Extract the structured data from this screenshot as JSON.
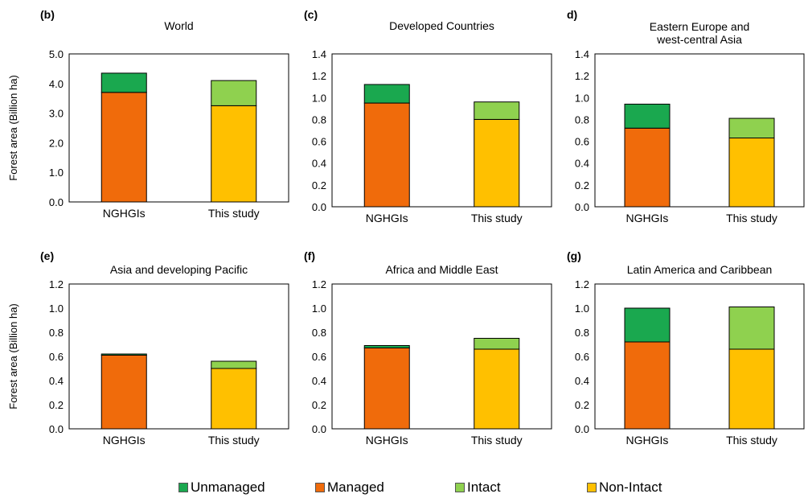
{
  "colors": {
    "unmanaged": "#1aa84f",
    "managed": "#f06b0b",
    "intact": "#8fd14f",
    "non_intact": "#ffc000"
  },
  "y_axis_label": "Forest area (Billion ha)",
  "legend": [
    {
      "label": "Unmanaged",
      "color_key": "unmanaged"
    },
    {
      "label": "Managed",
      "color_key": "managed"
    },
    {
      "label": "Intact",
      "color_key": "intact"
    },
    {
      "label": "Non-Intact",
      "color_key": "non_intact"
    }
  ],
  "chart_data": [
    {
      "type": "bar",
      "panel": "(b)",
      "title": "World",
      "categories": [
        "NGHGIs",
        "This study"
      ],
      "ylim": [
        0,
        5
      ],
      "yticks": [
        "0.0",
        "1.0",
        "2.0",
        "3.0",
        "4.0",
        "5.0"
      ],
      "series": [
        {
          "name": "Managed",
          "values": [
            3.7,
            null
          ]
        },
        {
          "name": "Unmanaged",
          "values": [
            0.65,
            null
          ]
        },
        {
          "name": "Non-Intact",
          "values": [
            null,
            3.25
          ]
        },
        {
          "name": "Intact",
          "values": [
            null,
            0.85
          ]
        }
      ]
    },
    {
      "type": "bar",
      "panel": "(c)",
      "title": "Developed Countries",
      "categories": [
        "NGHGIs",
        "This study"
      ],
      "ylim": [
        0,
        1.4
      ],
      "yticks": [
        "0.0",
        "0.2",
        "0.4",
        "0.6",
        "0.8",
        "1.0",
        "1.2",
        "1.4"
      ],
      "series": [
        {
          "name": "Managed",
          "values": [
            0.95,
            null
          ]
        },
        {
          "name": "Unmanaged",
          "values": [
            0.17,
            null
          ]
        },
        {
          "name": "Non-Intact",
          "values": [
            null,
            0.8
          ]
        },
        {
          "name": "Intact",
          "values": [
            null,
            0.16
          ]
        }
      ]
    },
    {
      "type": "bar",
      "panel": "d)",
      "title": "Eastern Europe and west-central Asia",
      "categories": [
        "NGHGIs",
        "This study"
      ],
      "ylim": [
        0,
        1.4
      ],
      "yticks": [
        "0.0",
        "0.2",
        "0.4",
        "0.6",
        "0.8",
        "1.0",
        "1.2",
        "1.4"
      ],
      "series": [
        {
          "name": "Managed",
          "values": [
            0.72,
            null
          ]
        },
        {
          "name": "Unmanaged",
          "values": [
            0.22,
            null
          ]
        },
        {
          "name": "Non-Intact",
          "values": [
            null,
            0.63
          ]
        },
        {
          "name": "Intact",
          "values": [
            null,
            0.18
          ]
        }
      ]
    },
    {
      "type": "bar",
      "panel": "(e)",
      "title": "Asia and developing Pacific",
      "categories": [
        "NGHGIs",
        "This study"
      ],
      "ylim": [
        0,
        1.2
      ],
      "yticks": [
        "0.0",
        "0.2",
        "0.4",
        "0.6",
        "0.8",
        "1.0",
        "1.2"
      ],
      "series": [
        {
          "name": "Managed",
          "values": [
            0.61,
            null
          ]
        },
        {
          "name": "Unmanaged",
          "values": [
            0.01,
            null
          ]
        },
        {
          "name": "Non-Intact",
          "values": [
            null,
            0.5
          ]
        },
        {
          "name": "Intact",
          "values": [
            null,
            0.06
          ]
        }
      ]
    },
    {
      "type": "bar",
      "panel": "(f)",
      "title": "Africa and Middle East",
      "categories": [
        "NGHGIs",
        "This study"
      ],
      "ylim": [
        0,
        1.2
      ],
      "yticks": [
        "0.0",
        "0.2",
        "0.4",
        "0.6",
        "0.8",
        "1.0",
        "1.2"
      ],
      "series": [
        {
          "name": "Managed",
          "values": [
            0.67,
            null
          ]
        },
        {
          "name": "Unmanaged",
          "values": [
            0.02,
            null
          ]
        },
        {
          "name": "Non-Intact",
          "values": [
            null,
            0.66
          ]
        },
        {
          "name": "Intact",
          "values": [
            null,
            0.09
          ]
        }
      ]
    },
    {
      "type": "bar",
      "panel": "(g)",
      "title": "Latin America and Caribbean",
      "categories": [
        "NGHGIs",
        "This study"
      ],
      "ylim": [
        0,
        1.2
      ],
      "yticks": [
        "0.0",
        "0.2",
        "0.4",
        "0.6",
        "0.8",
        "1.0",
        "1.2"
      ],
      "series": [
        {
          "name": "Managed",
          "values": [
            0.72,
            null
          ]
        },
        {
          "name": "Unmanaged",
          "values": [
            0.28,
            null
          ]
        },
        {
          "name": "Non-Intact",
          "values": [
            null,
            0.66
          ]
        },
        {
          "name": "Intact",
          "values": [
            null,
            0.35
          ]
        }
      ]
    }
  ]
}
